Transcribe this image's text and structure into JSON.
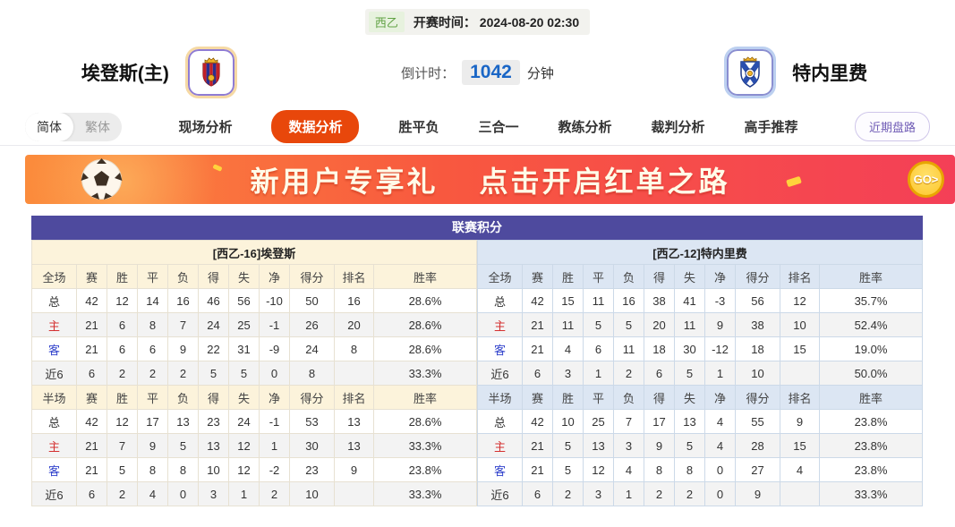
{
  "match_header": {
    "league": "西乙",
    "kickoff_label": "开赛时间：",
    "kickoff_time": "2024-08-20 02:30",
    "home_name": "埃登斯(主)",
    "away_name": "特内里费",
    "countdown_label": "倒计时：",
    "countdown_value": "1042",
    "countdown_unit": "分钟"
  },
  "nav": {
    "lang": {
      "simplified": "简体",
      "traditional": "繁体"
    },
    "tabs": [
      {
        "label": "现场分析",
        "active": false
      },
      {
        "label": "数据分析",
        "active": true
      },
      {
        "label": "胜平负",
        "active": false
      },
      {
        "label": "三合一",
        "active": false
      },
      {
        "label": "教练分析",
        "active": false
      },
      {
        "label": "裁判分析",
        "active": false
      },
      {
        "label": "高手推荐",
        "active": false
      }
    ],
    "recent_trend_button": "近期盘路"
  },
  "banner": {
    "headline_1": "新用户专享礼",
    "headline_2": "点击开启红单之路",
    "go_label": "GO>"
  },
  "league_table": {
    "title": "联赛积分",
    "columns_full": [
      "全场",
      "赛",
      "胜",
      "平",
      "负",
      "得",
      "失",
      "净",
      "得分",
      "排名",
      "胜率"
    ],
    "columns_half": [
      "半场",
      "赛",
      "胜",
      "平",
      "负",
      "得",
      "失",
      "净",
      "得分",
      "排名",
      "胜率"
    ],
    "home": {
      "team_header": "[西乙-16]埃登斯",
      "full_rows": [
        {
          "label": "总",
          "label_class": "",
          "cells": [
            "42",
            "12",
            "14",
            "16",
            "46",
            "56",
            "-10",
            "50",
            "16",
            "28.6%"
          ]
        },
        {
          "label": "主",
          "label_class": "lbl-red",
          "cells": [
            "21",
            "6",
            "8",
            "7",
            "24",
            "25",
            "-1",
            "26",
            "20",
            "28.6%"
          ]
        },
        {
          "label": "客",
          "label_class": "lbl-blue",
          "cells": [
            "21",
            "6",
            "6",
            "9",
            "22",
            "31",
            "-9",
            "24",
            "8",
            "28.6%"
          ]
        },
        {
          "label": "近6",
          "label_class": "",
          "cells": [
            "6",
            "2",
            "2",
            "2",
            "5",
            "5",
            "0",
            "8",
            "",
            "33.3%"
          ]
        }
      ],
      "half_rows": [
        {
          "label": "总",
          "label_class": "",
          "cells": [
            "42",
            "12",
            "17",
            "13",
            "23",
            "24",
            "-1",
            "53",
            "13",
            "28.6%"
          ]
        },
        {
          "label": "主",
          "label_class": "lbl-red",
          "cells": [
            "21",
            "7",
            "9",
            "5",
            "13",
            "12",
            "1",
            "30",
            "13",
            "33.3%"
          ]
        },
        {
          "label": "客",
          "label_class": "lbl-blue",
          "cells": [
            "21",
            "5",
            "8",
            "8",
            "10",
            "12",
            "-2",
            "23",
            "9",
            "23.8%"
          ]
        },
        {
          "label": "近6",
          "label_class": "",
          "cells": [
            "6",
            "2",
            "4",
            "0",
            "3",
            "1",
            "2",
            "10",
            "",
            "33.3%"
          ]
        }
      ]
    },
    "away": {
      "team_header": "[西乙-12]特内里费",
      "full_rows": [
        {
          "label": "总",
          "label_class": "",
          "cells": [
            "42",
            "15",
            "11",
            "16",
            "38",
            "41",
            "-3",
            "56",
            "12",
            "35.7%"
          ]
        },
        {
          "label": "主",
          "label_class": "lbl-red",
          "cells": [
            "21",
            "11",
            "5",
            "5",
            "20",
            "11",
            "9",
            "38",
            "10",
            "52.4%"
          ]
        },
        {
          "label": "客",
          "label_class": "lbl-blue",
          "cells": [
            "21",
            "4",
            "6",
            "11",
            "18",
            "30",
            "-12",
            "18",
            "15",
            "19.0%"
          ]
        },
        {
          "label": "近6",
          "label_class": "",
          "cells": [
            "6",
            "3",
            "1",
            "2",
            "6",
            "5",
            "1",
            "10",
            "",
            "50.0%"
          ]
        }
      ],
      "half_rows": [
        {
          "label": "总",
          "label_class": "",
          "cells": [
            "42",
            "10",
            "25",
            "7",
            "17",
            "13",
            "4",
            "55",
            "9",
            "23.8%"
          ]
        },
        {
          "label": "主",
          "label_class": "lbl-red",
          "cells": [
            "21",
            "5",
            "13",
            "3",
            "9",
            "5",
            "4",
            "28",
            "15",
            "23.8%"
          ]
        },
        {
          "label": "客",
          "label_class": "lbl-blue",
          "cells": [
            "21",
            "5",
            "12",
            "4",
            "8",
            "8",
            "0",
            "27",
            "4",
            "23.8%"
          ]
        },
        {
          "label": "近6",
          "label_class": "",
          "cells": [
            "6",
            "2",
            "3",
            "1",
            "2",
            "2",
            "0",
            "9",
            "",
            "33.3%"
          ]
        }
      ]
    }
  },
  "colors": {
    "active_tab": "#e8470b",
    "table_title_bg": "#4e4a9e",
    "home_header_bg": "#fcf3db",
    "away_header_bg": "#dce6f3",
    "countdown_value": "#1a66c6",
    "league_badge_text": "#61a244",
    "banner_gradient_left": "#fb8c3c",
    "banner_gradient_right": "#f43f57",
    "home_row_label": "#d43030",
    "away_row_label": "#3344cc"
  }
}
